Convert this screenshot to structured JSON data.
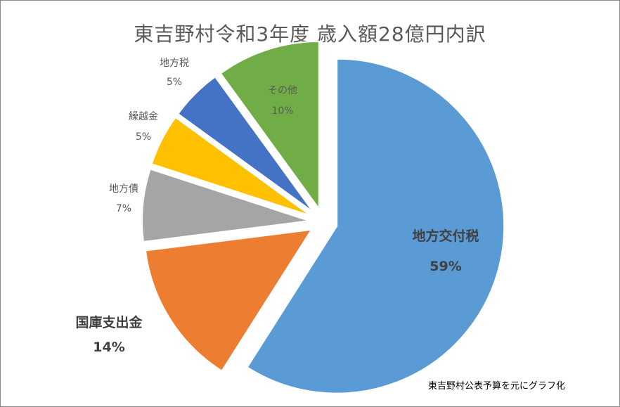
{
  "chart_data": {
    "type": "pie",
    "title": "東吉野村令和3年度 歳入額28億円内訳",
    "series": [
      {
        "categories": [
          "地方交付税",
          "国庫支出金",
          "地方債",
          "繰越金",
          "地方税",
          "その他"
        ],
        "values": [
          59,
          14,
          7,
          5,
          5,
          10
        ],
        "value_labels": [
          "59%",
          "14%",
          "7%",
          "5%",
          "5%",
          "10%"
        ],
        "colors": [
          "#5b9bd5",
          "#ed7d31",
          "#a5a5a5",
          "#ffc000",
          "#4472c4",
          "#70ad47"
        ]
      }
    ],
    "legend": "none",
    "note": "東吉野村公表予算を元にグラフ化"
  }
}
